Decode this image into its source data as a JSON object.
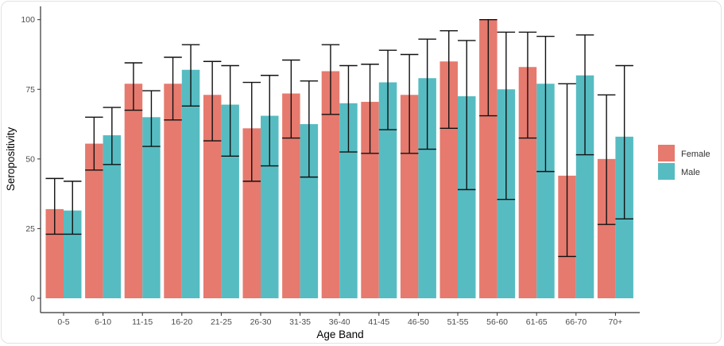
{
  "chart_data": {
    "type": "bar",
    "xlabel": "Age Band",
    "ylabel": "Seropositivity",
    "ylim": [
      0,
      100
    ],
    "yticks": [
      0,
      25,
      50,
      75,
      100
    ],
    "grid": false,
    "legend_placement": "right",
    "categories": [
      "0-5",
      "6-10",
      "11-15",
      "16-20",
      "21-25",
      "26-30",
      "31-35",
      "36-40",
      "41-45",
      "46-50",
      "51-55",
      "56-60",
      "61-65",
      "66-70",
      "70+"
    ],
    "series": [
      {
        "name": "Female",
        "color": "#E67A6E",
        "values": [
          32,
          55.5,
          77,
          77,
          73,
          61,
          73.5,
          81.5,
          70.5,
          73,
          85,
          100,
          83,
          44,
          50
        ],
        "error_low": [
          23,
          46,
          67.5,
          64,
          56.5,
          42,
          57.5,
          66,
          52,
          52,
          61,
          65.5,
          57.5,
          15,
          26.5
        ],
        "error_high": [
          43,
          65,
          84.5,
          86.5,
          85,
          77.5,
          85.5,
          91,
          84,
          87.5,
          96,
          100,
          95.5,
          77,
          73
        ]
      },
      {
        "name": "Male",
        "color": "#56BCC2",
        "values": [
          31.5,
          58.5,
          65,
          82,
          69.5,
          65.5,
          62.5,
          70,
          77.5,
          79,
          72.5,
          75,
          77,
          80,
          58
        ],
        "error_low": [
          23,
          48,
          54.5,
          69,
          51,
          47.5,
          43.5,
          52.5,
          60.5,
          53.5,
          39,
          35.5,
          45.5,
          51.5,
          28.5
        ],
        "error_high": [
          42,
          68.5,
          74.5,
          91,
          83.5,
          80,
          78,
          83.5,
          89,
          93,
          92.5,
          95.5,
          94,
          94.5,
          83.5
        ]
      }
    ]
  }
}
